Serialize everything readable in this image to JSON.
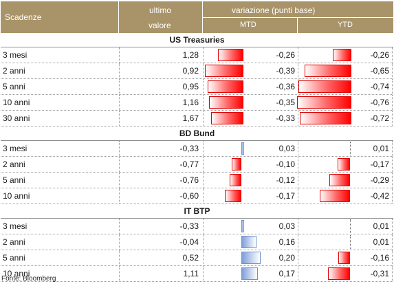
{
  "header": {
    "col1": "Scadenze",
    "col2_line1": "ultimo",
    "col2_line2": "valore",
    "group": "variazione (punti base)",
    "mtd": "MTD",
    "ytd": "YTD"
  },
  "sections": [
    {
      "title": "US Treasuries",
      "rows": [
        {
          "name": "3 mesi",
          "value": "1,28",
          "mtd": "-0,26",
          "ytd": "-0,26",
          "mtd_num": -0.26,
          "ytd_num": -0.26
        },
        {
          "name": "2 anni",
          "value": "0,92",
          "mtd": "-0,39",
          "ytd": "-0,65",
          "mtd_num": -0.39,
          "ytd_num": -0.65
        },
        {
          "name": "5 anni",
          "value": "0,95",
          "mtd": "-0,36",
          "ytd": "-0,74",
          "mtd_num": -0.36,
          "ytd_num": -0.74
        },
        {
          "name": "10 anni",
          "value": "1,16",
          "mtd": "-0,35",
          "ytd": "-0,76",
          "mtd_num": -0.35,
          "ytd_num": -0.76
        },
        {
          "name": "30 anni",
          "value": "1,67",
          "mtd": "-0,33",
          "ytd": "-0,72",
          "mtd_num": -0.33,
          "ytd_num": -0.72
        }
      ]
    },
    {
      "title": "BD Bund",
      "rows": [
        {
          "name": "3 mesi",
          "value": "-0,33",
          "mtd": "0,03",
          "ytd": "0,01",
          "mtd_num": 0.03,
          "ytd_num": 0.01
        },
        {
          "name": "2 anni",
          "value": "-0,77",
          "mtd": "-0,10",
          "ytd": "-0,17",
          "mtd_num": -0.1,
          "ytd_num": -0.17
        },
        {
          "name": "5 anni",
          "value": "-0,76",
          "mtd": "-0,12",
          "ytd": "-0,29",
          "mtd_num": -0.12,
          "ytd_num": -0.29
        },
        {
          "name": "10 anni",
          "value": "-0,60",
          "mtd": "-0,17",
          "ytd": "-0,42",
          "mtd_num": -0.17,
          "ytd_num": -0.42
        }
      ]
    },
    {
      "title": "IT BTP",
      "rows": [
        {
          "name": "3 mesi",
          "value": "-0,33",
          "mtd": "0,03",
          "ytd": "0,01",
          "mtd_num": 0.03,
          "ytd_num": 0.01
        },
        {
          "name": "2 anni",
          "value": "-0,04",
          "mtd": "0,16",
          "ytd": "0,01",
          "mtd_num": 0.16,
          "ytd_num": 0.01
        },
        {
          "name": "5 anni",
          "value": "0,52",
          "mtd": "0,20",
          "ytd": "-0,16",
          "mtd_num": 0.2,
          "ytd_num": -0.16
        },
        {
          "name": "10 anni",
          "value": "1,11",
          "mtd": "0,17",
          "ytd": "-0,31",
          "mtd_num": 0.17,
          "ytd_num": -0.31
        }
      ]
    }
  ],
  "source": "Fonte: Bloomberg"
}
